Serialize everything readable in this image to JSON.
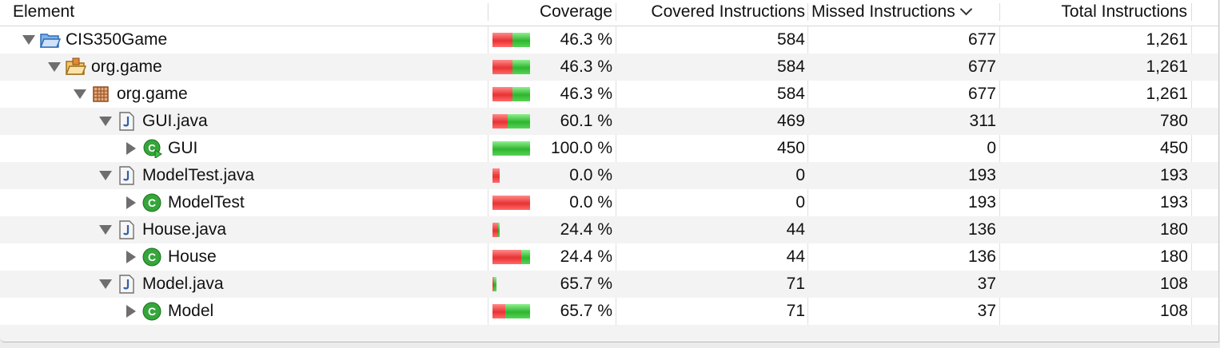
{
  "columns": {
    "element": "Element",
    "coverage": "Coverage",
    "covered": "Covered Instructions",
    "missed": "Missed Instructions",
    "total": "Total Instructions"
  },
  "rows": [
    {
      "name": "CIS350Game",
      "depth": 0,
      "icon": "project-folder-icon",
      "expand": "expanded",
      "coverage": "46.3 %",
      "covered": "584",
      "missed": "677",
      "total": "1,261",
      "cov_frac": 0.463,
      "bar_fill": 1.0
    },
    {
      "name": "org.game",
      "depth": 1,
      "icon": "source-folder-icon",
      "expand": "expanded",
      "coverage": "46.3 %",
      "covered": "584",
      "missed": "677",
      "total": "1,261",
      "cov_frac": 0.463,
      "bar_fill": 1.0
    },
    {
      "name": "org.game",
      "depth": 2,
      "icon": "package-icon",
      "expand": "expanded",
      "coverage": "46.3 %",
      "covered": "584",
      "missed": "677",
      "total": "1,261",
      "cov_frac": 0.463,
      "bar_fill": 1.0
    },
    {
      "name": "GUI.java",
      "depth": 3,
      "icon": "java-file-icon",
      "expand": "expanded",
      "coverage": "60.1 %",
      "covered": "469",
      "missed": "311",
      "total": "780",
      "cov_frac": 0.601,
      "bar_fill": 1.0
    },
    {
      "name": "GUI",
      "depth": 4,
      "icon": "java-class-runnable-icon",
      "expand": "collapsed",
      "coverage": "100.0 %",
      "covered": "450",
      "missed": "0",
      "total": "450",
      "cov_frac": 1.0,
      "bar_fill": 1.0
    },
    {
      "name": "ModelTest.java",
      "depth": 3,
      "icon": "java-file-icon",
      "expand": "expanded",
      "coverage": "0.0 %",
      "covered": "0",
      "missed": "193",
      "total": "193",
      "cov_frac": 0.0,
      "bar_fill": 0.2
    },
    {
      "name": "ModelTest",
      "depth": 4,
      "icon": "java-class-icon",
      "expand": "collapsed",
      "coverage": "0.0 %",
      "covered": "0",
      "missed": "193",
      "total": "193",
      "cov_frac": 0.0,
      "bar_fill": 1.0
    },
    {
      "name": "House.java",
      "depth": 3,
      "icon": "java-file-icon",
      "expand": "expanded",
      "coverage": "24.4 %",
      "covered": "44",
      "missed": "136",
      "total": "180",
      "cov_frac": 0.244,
      "bar_fill": 0.2
    },
    {
      "name": "House",
      "depth": 4,
      "icon": "java-class-icon",
      "expand": "collapsed",
      "coverage": "24.4 %",
      "covered": "44",
      "missed": "136",
      "total": "180",
      "cov_frac": 0.244,
      "bar_fill": 1.0
    },
    {
      "name": "Model.java",
      "depth": 3,
      "icon": "java-file-icon",
      "expand": "expanded",
      "coverage": "65.7 %",
      "covered": "71",
      "missed": "37",
      "total": "108",
      "cov_frac": 0.657,
      "bar_fill": 0.1
    },
    {
      "name": "Model",
      "depth": 4,
      "icon": "java-class-icon",
      "expand": "collapsed",
      "coverage": "65.7 %",
      "covered": "71",
      "missed": "37",
      "total": "108",
      "cov_frac": 0.657,
      "bar_fill": 1.0
    }
  ],
  "colors": {
    "covered_bar": "#2fb52f",
    "missed_bar": "#e83232",
    "row_alt": "#f3f3f3"
  }
}
